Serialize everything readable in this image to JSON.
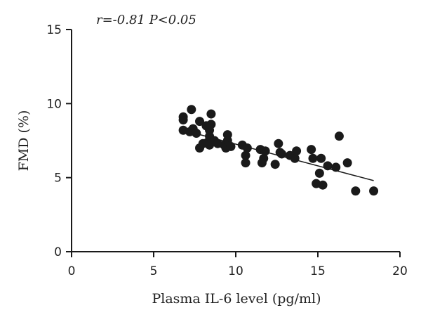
{
  "chart_data": {
    "type": "scatter",
    "annotation": "r=-0.81 P<0.05",
    "xlabel": "Plasma IL-6 level (pg/ml)",
    "ylabel": "FMD (%)",
    "xlim": [
      0,
      20
    ],
    "ylim": [
      0,
      15
    ],
    "xticks": [
      0,
      5,
      10,
      15,
      20
    ],
    "yticks": [
      0,
      5,
      10,
      15
    ],
    "grid": false,
    "marker_color": "#1a1a1a",
    "points": [
      {
        "x": 6.8,
        "y": 9.1
      },
      {
        "x": 6.8,
        "y": 8.9
      },
      {
        "x": 6.8,
        "y": 8.2
      },
      {
        "x": 7.3,
        "y": 9.6
      },
      {
        "x": 7.2,
        "y": 8.1
      },
      {
        "x": 7.4,
        "y": 8.3
      },
      {
        "x": 7.6,
        "y": 8.0
      },
      {
        "x": 7.8,
        "y": 8.8
      },
      {
        "x": 7.8,
        "y": 7.0
      },
      {
        "x": 8.0,
        "y": 7.3
      },
      {
        "x": 8.2,
        "y": 8.5
      },
      {
        "x": 8.3,
        "y": 7.4
      },
      {
        "x": 8.4,
        "y": 7.2
      },
      {
        "x": 8.4,
        "y": 7.8
      },
      {
        "x": 8.4,
        "y": 8.2
      },
      {
        "x": 8.5,
        "y": 8.6
      },
      {
        "x": 8.5,
        "y": 9.3
      },
      {
        "x": 8.7,
        "y": 7.5
      },
      {
        "x": 8.9,
        "y": 7.3
      },
      {
        "x": 9.3,
        "y": 7.2
      },
      {
        "x": 9.4,
        "y": 7.0
      },
      {
        "x": 9.5,
        "y": 7.9
      },
      {
        "x": 9.5,
        "y": 7.5
      },
      {
        "x": 9.7,
        "y": 7.1
      },
      {
        "x": 10.4,
        "y": 7.2
      },
      {
        "x": 10.6,
        "y": 6.5
      },
      {
        "x": 10.6,
        "y": 6.0
      },
      {
        "x": 10.7,
        "y": 7.0
      },
      {
        "x": 11.5,
        "y": 6.9
      },
      {
        "x": 11.6,
        "y": 6.0
      },
      {
        "x": 11.7,
        "y": 6.3
      },
      {
        "x": 11.8,
        "y": 6.8
      },
      {
        "x": 12.4,
        "y": 5.9
      },
      {
        "x": 12.6,
        "y": 7.3
      },
      {
        "x": 12.7,
        "y": 6.7
      },
      {
        "x": 12.8,
        "y": 6.6
      },
      {
        "x": 13.3,
        "y": 6.5
      },
      {
        "x": 13.6,
        "y": 6.3
      },
      {
        "x": 13.7,
        "y": 6.8
      },
      {
        "x": 14.6,
        "y": 6.9
      },
      {
        "x": 14.7,
        "y": 6.3
      },
      {
        "x": 14.9,
        "y": 4.6
      },
      {
        "x": 15.1,
        "y": 5.3
      },
      {
        "x": 15.2,
        "y": 6.3
      },
      {
        "x": 15.3,
        "y": 4.5
      },
      {
        "x": 15.6,
        "y": 5.8
      },
      {
        "x": 16.1,
        "y": 5.7
      },
      {
        "x": 16.3,
        "y": 7.8
      },
      {
        "x": 16.8,
        "y": 6.0
      },
      {
        "x": 17.3,
        "y": 4.1
      },
      {
        "x": 18.4,
        "y": 4.1
      }
    ],
    "trendline": {
      "x": [
        6.8,
        18.4
      ],
      "y": [
        8.2,
        4.8
      ]
    }
  }
}
